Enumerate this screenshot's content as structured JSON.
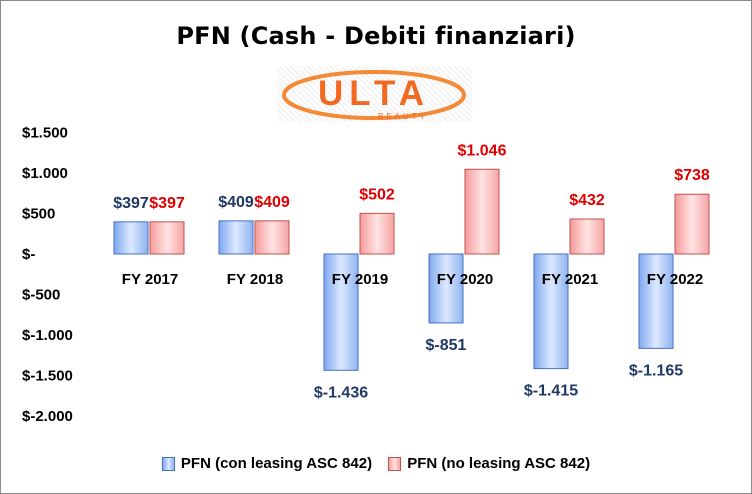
{
  "chart_data": {
    "type": "bar",
    "title": "PFN (Cash - Debiti finanziari)",
    "logo": {
      "main": "ULTA",
      "sub": "BEAUTY"
    },
    "categories": [
      "FY 2017",
      "FY 2018",
      "FY 2019",
      "FY 2020",
      "FY 2021",
      "FY 2022"
    ],
    "series": [
      {
        "name": "PFN (con leasing ASC 842)",
        "values": [
          397,
          409,
          -1436,
          -851,
          -1415,
          -1165
        ],
        "labels": [
          "$397",
          "$409",
          "$-1.436",
          "$-851",
          "$-1.415",
          "$-1.165"
        ],
        "color": "#1f3864",
        "fill_light": "#dce9ff",
        "fill_dark": "#7fa8ef",
        "stroke": "#4472c4"
      },
      {
        "name": "PFN (no leasing ASC 842)",
        "values": [
          397,
          409,
          502,
          1046,
          432,
          738
        ],
        "labels": [
          "$397",
          "$409",
          "$502",
          "$1.046",
          "$432",
          "$738"
        ],
        "color": "#e00000",
        "fill_light": "#ffe3e3",
        "fill_dark": "#f59a9a",
        "stroke": "#c0504d"
      }
    ],
    "yticks": [
      {
        "value": 1500,
        "label": "$1.500"
      },
      {
        "value": 1000,
        "label": "$1.000"
      },
      {
        "value": 500,
        "label": "$500"
      },
      {
        "value": 0,
        "label": "$-"
      },
      {
        "value": -500,
        "label": "$-500"
      },
      {
        "value": -1000,
        "label": "$-1.000"
      },
      {
        "value": -1500,
        "label": "$-1.500"
      },
      {
        "value": -2000,
        "label": "$-2.000"
      }
    ],
    "ylim": [
      -2000,
      1500
    ],
    "grid": false,
    "legend_position": "bottom"
  }
}
